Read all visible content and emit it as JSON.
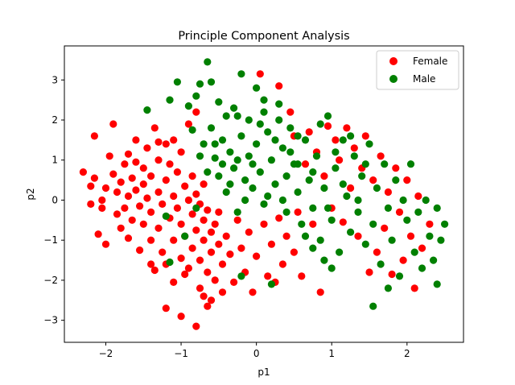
{
  "chart_data": {
    "type": "scatter",
    "title": "Principle Component Analysis",
    "xlabel": "p1",
    "ylabel": "p2",
    "xlim": [
      -2.55,
      2.75
    ],
    "ylim": [
      -3.55,
      3.85
    ],
    "x_ticks": [
      -2,
      -1,
      0,
      1,
      2
    ],
    "y_ticks": [
      -3,
      -2,
      -1,
      0,
      1,
      2,
      3
    ],
    "x_tick_labels": [
      "−2",
      "−1",
      "0",
      "1",
      "2"
    ],
    "y_tick_labels": [
      "−3",
      "−2",
      "−1",
      "0",
      "1",
      "2",
      "3"
    ],
    "grid": false,
    "legend_position": "top-right",
    "series": [
      {
        "name": "Female",
        "color": "#ff0000",
        "points": [
          [
            -2.3,
            0.7
          ],
          [
            -2.2,
            0.35
          ],
          [
            -2.2,
            -0.1
          ],
          [
            -2.15,
            0.55
          ],
          [
            -2.15,
            1.6
          ],
          [
            -2.1,
            -0.85
          ],
          [
            -2.05,
            -0.2
          ],
          [
            -2.0,
            0.3
          ],
          [
            -2.0,
            -1.1
          ],
          [
            -1.95,
            1.1
          ],
          [
            -1.9,
            1.9
          ],
          [
            -1.9,
            0.65
          ],
          [
            -1.85,
            -0.35
          ],
          [
            -1.85,
            0.2
          ],
          [
            -1.8,
            -0.7
          ],
          [
            -1.8,
            0.45
          ],
          [
            -1.75,
            -0.2
          ],
          [
            -1.75,
            0.9
          ],
          [
            -1.7,
            0.1
          ],
          [
            -1.7,
            -0.95
          ],
          [
            -1.65,
            0.55
          ],
          [
            -1.65,
            -0.5
          ],
          [
            -1.6,
            1.5
          ],
          [
            -1.6,
            0.25
          ],
          [
            -1.55,
            -0.15
          ],
          [
            -1.55,
            -1.25
          ],
          [
            -1.5,
            0.8
          ],
          [
            -1.5,
            0.4
          ],
          [
            -1.5,
            -0.6
          ],
          [
            -1.45,
            1.3
          ],
          [
            -1.45,
            0.05
          ],
          [
            -1.4,
            -0.3
          ],
          [
            -1.4,
            -1.0
          ],
          [
            -1.4,
            0.6
          ],
          [
            -1.35,
            1.8
          ],
          [
            -1.35,
            -1.75
          ],
          [
            -1.3,
            0.2
          ],
          [
            -1.3,
            -0.7
          ],
          [
            -1.3,
            1.0
          ],
          [
            -1.25,
            -0.1
          ],
          [
            -1.25,
            -1.3
          ],
          [
            -1.2,
            0.5
          ],
          [
            -1.2,
            1.4
          ],
          [
            -1.2,
            -2.7
          ],
          [
            -1.15,
            -0.45
          ],
          [
            -1.15,
            0.9
          ],
          [
            -1.1,
            0.1
          ],
          [
            -1.1,
            -1.0
          ],
          [
            -1.1,
            -2.05
          ],
          [
            -1.05,
            0.7
          ],
          [
            -1.05,
            -0.2
          ],
          [
            -1.0,
            -0.6
          ],
          [
            -1.0,
            1.2
          ],
          [
            -1.0,
            -1.45
          ],
          [
            -1.0,
            -2.9
          ],
          [
            -0.95,
            0.35
          ],
          [
            -0.95,
            -0.9
          ],
          [
            -0.9,
            0.0
          ],
          [
            -0.9,
            1.9
          ],
          [
            -0.9,
            -1.7
          ],
          [
            -0.85,
            -0.35
          ],
          [
            -0.85,
            0.6
          ],
          [
            -0.85,
            -1.2
          ],
          [
            -0.8,
            -3.15
          ],
          [
            -0.8,
            0.15
          ],
          [
            -0.8,
            -0.75
          ],
          [
            -0.8,
            2.2
          ],
          [
            -0.75,
            -1.5
          ],
          [
            -0.75,
            -0.1
          ],
          [
            -0.75,
            -2.2
          ],
          [
            -0.7,
            -0.5
          ],
          [
            -0.7,
            0.4
          ],
          [
            -0.7,
            -1.0
          ],
          [
            -0.65,
            -1.8
          ],
          [
            -0.65,
            -0.25
          ],
          [
            -0.6,
            -0.8
          ],
          [
            -0.6,
            -2.5
          ],
          [
            -0.6,
            -1.3
          ],
          [
            -0.55,
            -0.6
          ],
          [
            -0.55,
            -2.0
          ],
          [
            -0.5,
            -1.1
          ],
          [
            -0.5,
            -0.3
          ],
          [
            -0.45,
            -1.6
          ],
          [
            -0.45,
            -2.3
          ],
          [
            -0.4,
            -0.9
          ],
          [
            -0.35,
            -1.35
          ],
          [
            -0.3,
            -2.05
          ],
          [
            -0.25,
            -0.5
          ],
          [
            -0.2,
            -1.2
          ],
          [
            -0.15,
            -1.8
          ],
          [
            -0.1,
            -0.8
          ],
          [
            -0.05,
            -2.3
          ],
          [
            0.0,
            -1.4
          ],
          [
            0.05,
            3.15
          ],
          [
            0.1,
            -0.6
          ],
          [
            0.15,
            -1.9
          ],
          [
            0.2,
            -1.1
          ],
          [
            0.25,
            -2.05
          ],
          [
            0.3,
            2.85
          ],
          [
            0.3,
            -0.45
          ],
          [
            0.35,
            -1.6
          ],
          [
            0.4,
            -0.9
          ],
          [
            0.45,
            2.2
          ],
          [
            0.5,
            -1.3
          ],
          [
            0.5,
            1.6
          ],
          [
            0.55,
            -0.3
          ],
          [
            0.6,
            -1.9
          ],
          [
            0.65,
            0.9
          ],
          [
            0.7,
            1.7
          ],
          [
            0.75,
            -0.6
          ],
          [
            0.8,
            1.2
          ],
          [
            0.85,
            -2.3
          ],
          [
            0.9,
            0.6
          ],
          [
            0.95,
            1.85
          ],
          [
            1.0,
            -0.2
          ],
          [
            1.05,
            1.5
          ],
          [
            1.1,
            1.0
          ],
          [
            1.15,
            -0.55
          ],
          [
            1.2,
            1.8
          ],
          [
            1.25,
            0.3
          ],
          [
            1.3,
            1.3
          ],
          [
            1.35,
            -0.9
          ],
          [
            1.4,
            0.8
          ],
          [
            1.45,
            1.6
          ],
          [
            1.5,
            -1.8
          ],
          [
            1.55,
            0.5
          ],
          [
            1.6,
            -1.3
          ],
          [
            1.65,
            1.1
          ],
          [
            1.7,
            -0.7
          ],
          [
            1.75,
            0.2
          ],
          [
            1.8,
            -1.85
          ],
          [
            1.85,
            0.8
          ],
          [
            1.9,
            -0.3
          ],
          [
            1.95,
            -1.5
          ],
          [
            2.0,
            0.5
          ],
          [
            2.05,
            -0.9
          ],
          [
            2.1,
            -2.2
          ],
          [
            2.15,
            0.1
          ],
          [
            2.2,
            -1.2
          ],
          [
            2.3,
            -0.6
          ],
          [
            -1.7,
            1.15
          ],
          [
            -1.6,
            0.95
          ],
          [
            -1.4,
            -1.6
          ],
          [
            -1.2,
            -1.6
          ],
          [
            -0.95,
            -1.85
          ],
          [
            -0.7,
            -2.4
          ],
          [
            -0.65,
            -2.65
          ],
          [
            -1.3,
            1.45
          ],
          [
            -1.1,
            1.5
          ],
          [
            -2.05,
            0.0
          ]
        ]
      },
      {
        "name": "Male",
        "color": "#008000",
        "points": [
          [
            -1.45,
            2.25
          ],
          [
            -1.15,
            2.5
          ],
          [
            -1.05,
            2.95
          ],
          [
            -0.9,
            2.35
          ],
          [
            -0.85,
            1.75
          ],
          [
            -0.8,
            2.6
          ],
          [
            -0.75,
            2.9
          ],
          [
            -0.7,
            1.4
          ],
          [
            -0.65,
            3.45
          ],
          [
            -0.6,
            2.95
          ],
          [
            -0.6,
            1.8
          ],
          [
            -0.55,
            1.05
          ],
          [
            -0.5,
            2.45
          ],
          [
            -0.5,
            0.6
          ],
          [
            -0.45,
            1.5
          ],
          [
            -0.4,
            2.1
          ],
          [
            -0.4,
            0.2
          ],
          [
            -0.35,
            1.2
          ],
          [
            -0.3,
            2.3
          ],
          [
            -0.3,
            0.8
          ],
          [
            -0.25,
            -0.3
          ],
          [
            -0.2,
            1.6
          ],
          [
            -0.2,
            3.15
          ],
          [
            -0.15,
            0.5
          ],
          [
            -0.1,
            2.0
          ],
          [
            -0.1,
            1.1
          ],
          [
            -0.05,
            0.3
          ],
          [
            0.0,
            2.8
          ],
          [
            0.0,
            1.4
          ],
          [
            0.05,
            0.7
          ],
          [
            0.1,
            2.2
          ],
          [
            0.15,
            0.1
          ],
          [
            0.15,
            1.7
          ],
          [
            0.2,
            1.0
          ],
          [
            0.25,
            0.4
          ],
          [
            0.3,
            2.0
          ],
          [
            0.35,
            1.3
          ],
          [
            0.4,
            0.6
          ],
          [
            0.4,
            -0.3
          ],
          [
            0.45,
            1.8
          ],
          [
            0.5,
            0.9
          ],
          [
            0.55,
            0.2
          ],
          [
            0.6,
            -0.6
          ],
          [
            0.65,
            1.5
          ],
          [
            0.7,
            0.5
          ],
          [
            0.75,
            -0.2
          ],
          [
            0.8,
            1.1
          ],
          [
            0.85,
            -1.0
          ],
          [
            0.9,
            0.3
          ],
          [
            0.95,
            2.1
          ],
          [
            1.0,
            -0.5
          ],
          [
            1.05,
            0.8
          ],
          [
            1.1,
            -1.3
          ],
          [
            1.15,
            1.5
          ],
          [
            1.2,
            0.1
          ],
          [
            1.25,
            -0.8
          ],
          [
            1.3,
            1.1
          ],
          [
            1.35,
            -0.3
          ],
          [
            1.4,
            0.6
          ],
          [
            1.45,
            -1.1
          ],
          [
            1.5,
            1.4
          ],
          [
            1.55,
            -0.6
          ],
          [
            1.6,
            0.3
          ],
          [
            1.65,
            -1.6
          ],
          [
            1.7,
            0.9
          ],
          [
            1.75,
            -0.2
          ],
          [
            1.8,
            -1.0
          ],
          [
            1.85,
            0.5
          ],
          [
            1.9,
            -1.9
          ],
          [
            1.95,
            0.0
          ],
          [
            2.0,
            -0.5
          ],
          [
            2.05,
            0.9
          ],
          [
            2.1,
            -1.3
          ],
          [
            2.15,
            -0.3
          ],
          [
            2.2,
            -1.7
          ],
          [
            2.25,
            0.0
          ],
          [
            2.3,
            -0.9
          ],
          [
            2.35,
            -1.5
          ],
          [
            2.4,
            -0.2
          ],
          [
            2.45,
            -1.0
          ],
          [
            2.5,
            -0.6
          ],
          [
            1.55,
            -2.65
          ],
          [
            1.75,
            -2.2
          ],
          [
            2.4,
            -2.1
          ],
          [
            -1.2,
            -0.4
          ],
          [
            -1.15,
            -1.55
          ],
          [
            -0.95,
            -0.9
          ],
          [
            -0.8,
            -0.2
          ],
          [
            -0.2,
            -1.9
          ],
          [
            0.2,
            -2.1
          ],
          [
            -0.45,
            0.9
          ],
          [
            -0.35,
            0.4
          ],
          [
            -0.25,
            1.0
          ],
          [
            -0.15,
            0.0
          ],
          [
            -0.05,
            0.9
          ],
          [
            0.05,
            1.9
          ],
          [
            0.1,
            -0.1
          ],
          [
            0.25,
            1.5
          ],
          [
            0.35,
            0.0
          ],
          [
            0.45,
            1.2
          ],
          [
            0.55,
            1.6
          ],
          [
            0.65,
            -0.9
          ],
          [
            0.75,
            0.7
          ],
          [
            0.85,
            1.9
          ],
          [
            0.95,
            -0.2
          ],
          [
            1.05,
            1.2
          ],
          [
            1.15,
            0.4
          ],
          [
            1.25,
            1.6
          ],
          [
            1.35,
            0.0
          ],
          [
            1.45,
            0.9
          ],
          [
            0.3,
            2.4
          ],
          [
            0.1,
            2.5
          ],
          [
            -0.25,
            2.1
          ],
          [
            -0.55,
            1.4
          ],
          [
            -0.65,
            0.7
          ],
          [
            -0.75,
            1.1
          ],
          [
            0.55,
            0.9
          ],
          [
            0.9,
            -1.5
          ],
          [
            1.0,
            -1.7
          ],
          [
            0.75,
            -1.2
          ]
        ]
      }
    ]
  }
}
